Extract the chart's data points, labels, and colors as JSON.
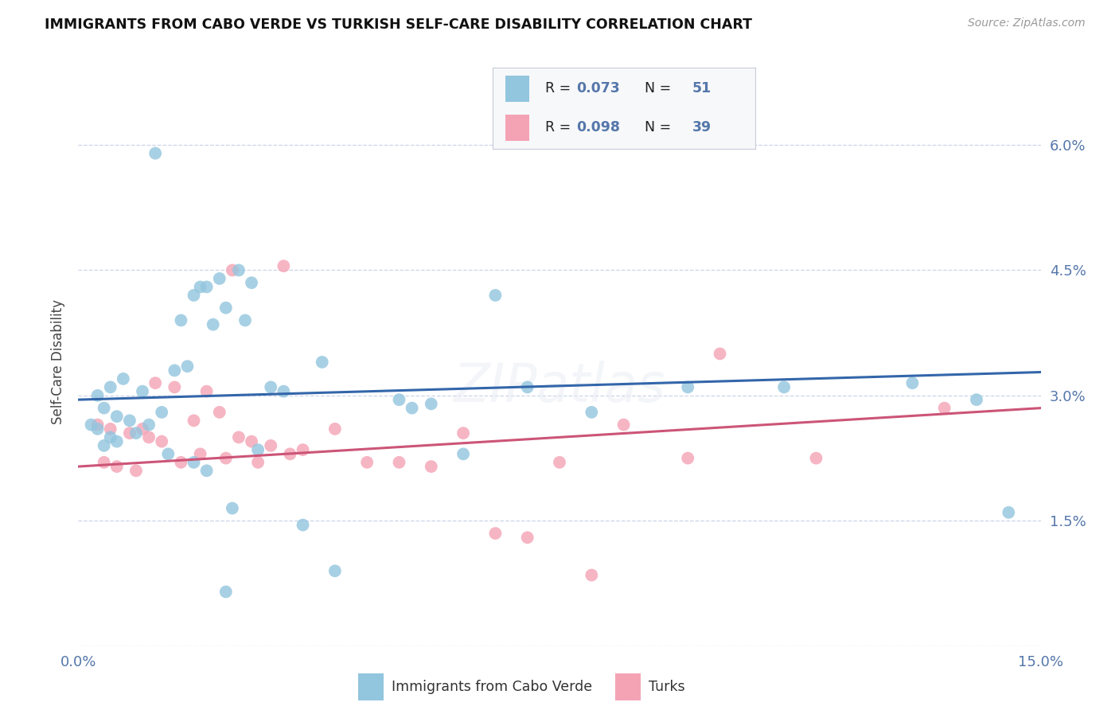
{
  "title": "IMMIGRANTS FROM CABO VERDE VS TURKISH SELF-CARE DISABILITY CORRELATION CHART",
  "source": "Source: ZipAtlas.com",
  "ylabel": "Self-Care Disability",
  "xlim": [
    0.0,
    15.0
  ],
  "ylim": [
    0.0,
    6.8
  ],
  "legend_label1": "Immigrants from Cabo Verde",
  "legend_label2": "Turks",
  "color_blue": "#92c5de",
  "color_pink": "#f4a3b5",
  "line_blue": "#3366aa",
  "line_pink": "#cc5577",
  "background_color": "#ffffff",
  "grid_color": "#ccd4e8",
  "tick_color": "#5577aa",
  "cabo_x": [
    1.2,
    1.8,
    2.0,
    0.3,
    0.5,
    0.7,
    1.0,
    0.4,
    0.6,
    0.8,
    1.1,
    1.3,
    0.9,
    1.5,
    1.7,
    2.2,
    2.5,
    2.7,
    3.0,
    3.2,
    2.3,
    2.6,
    1.9,
    2.1,
    1.6,
    0.2,
    0.3,
    0.5,
    0.4,
    0.6,
    1.4,
    2.8,
    5.0,
    5.5,
    6.5,
    7.0,
    8.0,
    9.5,
    11.0,
    13.0,
    14.0,
    14.5,
    2.4,
    3.5,
    4.0,
    5.2,
    6.0,
    1.8,
    2.0,
    2.3,
    3.8
  ],
  "cabo_y": [
    5.9,
    4.2,
    4.3,
    3.0,
    3.1,
    3.2,
    3.05,
    2.85,
    2.75,
    2.7,
    2.65,
    2.8,
    2.55,
    3.3,
    3.35,
    4.4,
    4.5,
    4.35,
    3.1,
    3.05,
    4.05,
    3.9,
    4.3,
    3.85,
    3.9,
    2.65,
    2.6,
    2.5,
    2.4,
    2.45,
    2.3,
    2.35,
    2.95,
    2.9,
    4.2,
    3.1,
    2.8,
    3.1,
    3.1,
    3.15,
    2.95,
    1.6,
    1.65,
    1.45,
    0.9,
    2.85,
    2.3,
    2.2,
    2.1,
    0.65,
    3.4
  ],
  "turk_x": [
    0.3,
    0.5,
    0.8,
    1.0,
    1.2,
    1.5,
    1.8,
    2.0,
    2.2,
    2.5,
    2.7,
    3.0,
    3.3,
    3.5,
    0.4,
    0.6,
    0.9,
    1.1,
    1.3,
    1.6,
    1.9,
    2.3,
    2.8,
    4.5,
    5.0,
    5.5,
    6.0,
    7.5,
    8.5,
    9.5,
    10.0,
    11.5,
    2.4,
    3.2,
    4.0,
    6.5,
    7.0,
    8.0,
    13.5
  ],
  "turk_y": [
    2.65,
    2.6,
    2.55,
    2.6,
    3.15,
    3.1,
    2.7,
    3.05,
    2.8,
    2.5,
    2.45,
    2.4,
    2.3,
    2.35,
    2.2,
    2.15,
    2.1,
    2.5,
    2.45,
    2.2,
    2.3,
    2.25,
    2.2,
    2.2,
    2.2,
    2.15,
    2.55,
    2.2,
    2.65,
    2.25,
    3.5,
    2.25,
    4.5,
    4.55,
    2.6,
    1.35,
    1.3,
    0.85,
    2.85
  ],
  "blue_line_y_start": 2.95,
  "blue_line_y_end": 3.28,
  "pink_line_y_start": 2.15,
  "pink_line_y_end": 2.85,
  "ytick_vals": [
    0.0,
    1.5,
    3.0,
    4.5,
    6.0
  ],
  "ytick_labels_right": [
    "",
    "1.5%",
    "3.0%",
    "4.5%",
    "6.0%"
  ]
}
